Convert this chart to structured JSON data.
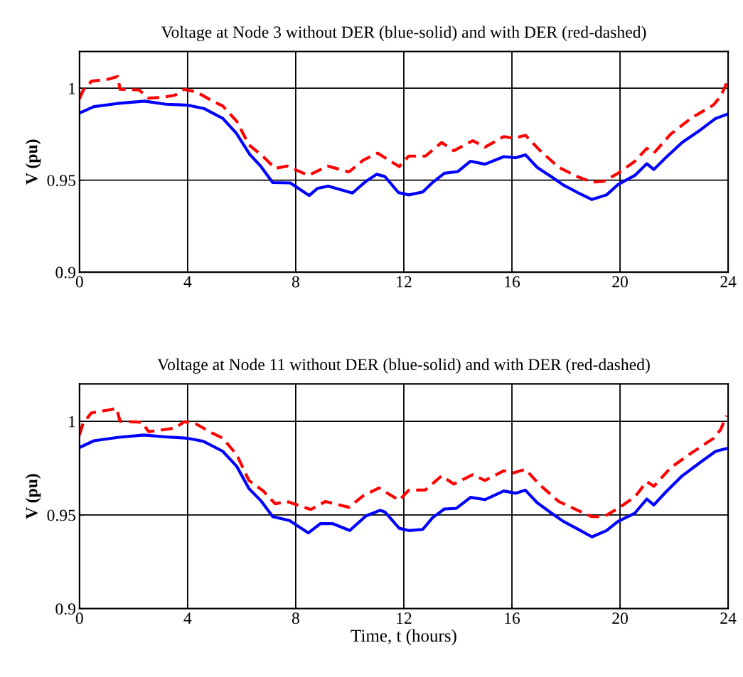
{
  "chart_data": [
    {
      "type": "line",
      "title": "Voltage at Node 3 without DER (blue-solid) and with DER (red-dashed)",
      "ylabel": "V (pu)",
      "xlim": [
        0,
        24
      ],
      "xticks": [
        0,
        4,
        8,
        12,
        16,
        20,
        24
      ],
      "ylim": [
        0.9,
        1.02
      ],
      "yticks": [
        0.9,
        0.95,
        1
      ],
      "grid": true,
      "series": [
        {
          "color": "#0000ff",
          "line_style": "solid",
          "x": [
            0,
            0.53,
            1.4,
            2.4,
            3.2,
            4.0,
            4.6,
            5.3,
            5.8,
            6.3,
            6.7,
            7.15,
            7.8,
            8.5,
            8.8,
            9.2,
            10.1,
            10.6,
            11.0,
            11.3,
            11.8,
            12.18,
            12.7,
            13.06,
            13.5,
            14.0,
            14.47,
            15.0,
            15.7,
            16.14,
            16.5,
            16.93,
            17.46,
            17.9,
            18.43,
            18.96,
            19.5,
            19.93,
            20.55,
            20.99,
            21.25,
            21.69,
            22.3,
            23.0,
            23.54,
            23.98
          ],
          "values": [
            0.9865,
            0.99,
            0.9917,
            0.993,
            0.9913,
            0.9908,
            0.989,
            0.9836,
            0.9756,
            0.964,
            0.9577,
            0.9487,
            0.9485,
            0.9417,
            0.9455,
            0.9468,
            0.943,
            0.9494,
            0.9532,
            0.952,
            0.9433,
            0.942,
            0.9436,
            0.9487,
            0.9538,
            0.9547,
            0.9603,
            0.9587,
            0.9628,
            0.9622,
            0.9638,
            0.957,
            0.9519,
            0.9474,
            0.9433,
            0.9395,
            0.942,
            0.9477,
            0.9526,
            0.959,
            0.9558,
            0.9622,
            0.9705,
            0.9776,
            0.9836,
            0.9859
          ]
        },
        {
          "color": "#ff0000",
          "line_style": "dashed",
          "x": [
            0,
            0.13,
            0.44,
            1.06,
            1.41,
            1.5,
            2.2,
            2.56,
            3.09,
            3.53,
            3.88,
            4.32,
            4.94,
            5.3,
            5.82,
            6.27,
            6.8,
            7.24,
            7.68,
            8.47,
            9.18,
            9.97,
            10.5,
            11.03,
            11.83,
            12.18,
            12.8,
            13.4,
            13.85,
            14.55,
            15.0,
            15.7,
            16.05,
            16.5,
            17.0,
            17.73,
            18.43,
            18.96,
            19.4,
            19.93,
            20.55,
            20.99,
            21.25,
            21.87,
            22.66,
            23.45,
            23.72,
            23.94
          ],
          "values": [
            0.9942,
            0.9987,
            1.0038,
            1.0049,
            1.0064,
            0.9994,
            0.9991,
            0.9946,
            0.9951,
            0.9962,
            0.9994,
            0.998,
            0.9929,
            0.9904,
            0.982,
            0.9692,
            0.9628,
            0.9564,
            0.9577,
            0.9526,
            0.9577,
            0.9545,
            0.9609,
            0.9647,
            0.9574,
            0.9631,
            0.9631,
            0.9705,
            0.966,
            0.9715,
            0.968,
            0.9737,
            0.9728,
            0.9744,
            0.9667,
            0.957,
            0.9519,
            0.949,
            0.9494,
            0.9538,
            0.9603,
            0.9673,
            0.9647,
            0.975,
            0.984,
            0.9908,
            0.9955,
            1.0026
          ]
        }
      ]
    },
    {
      "type": "line",
      "title": "Voltage at Node 11 without DER (blue-solid) and with DER (red-dashed)",
      "xlabel": "Time, t (hours)",
      "ylabel": "V (pu)",
      "xlim": [
        0,
        24
      ],
      "xticks": [
        0,
        4,
        8,
        12,
        16,
        20,
        24
      ],
      "ylim": [
        0.9,
        1.02
      ],
      "yticks": [
        0.9,
        0.95,
        1
      ],
      "grid": true,
      "series": [
        {
          "color": "#0000ff",
          "line_style": "solid",
          "x": [
            0,
            0.53,
            1.41,
            2.38,
            3.18,
            3.97,
            4.59,
            5.3,
            5.82,
            6.27,
            6.7,
            7.15,
            7.77,
            8.47,
            8.91,
            9.36,
            10.0,
            10.6,
            11.12,
            11.3,
            11.83,
            12.18,
            12.7,
            13.06,
            13.5,
            13.94,
            14.47,
            15.0,
            15.7,
            16.14,
            16.5,
            16.93,
            17.46,
            17.9,
            18.43,
            18.96,
            19.5,
            19.93,
            20.55,
            20.99,
            21.25,
            21.69,
            22.3,
            23.0,
            23.54,
            23.98
          ],
          "values": [
            0.986,
            0.9896,
            0.9914,
            0.9927,
            0.9917,
            0.991,
            0.9893,
            0.984,
            0.9759,
            0.9641,
            0.9578,
            0.9491,
            0.947,
            0.9404,
            0.9454,
            0.9454,
            0.9417,
            0.9495,
            0.9525,
            0.9516,
            0.9429,
            0.9417,
            0.9423,
            0.9485,
            0.9532,
            0.9535,
            0.9594,
            0.9582,
            0.9628,
            0.9616,
            0.9632,
            0.9566,
            0.951,
            0.9466,
            0.9425,
            0.9383,
            0.9417,
            0.9466,
            0.951,
            0.9585,
            0.9553,
            0.9622,
            0.9709,
            0.9784,
            0.984,
            0.9856
          ]
        },
        {
          "color": "#ff0000",
          "line_style": "dashed",
          "x": [
            0,
            0.13,
            0.44,
            1.06,
            1.37,
            1.5,
            2.3,
            2.56,
            3.09,
            3.53,
            3.88,
            4.32,
            4.94,
            5.3,
            5.82,
            6.27,
            6.8,
            7.24,
            7.68,
            8.56,
            9.1,
            9.97,
            10.5,
            11.08,
            11.83,
            12.18,
            12.8,
            13.4,
            13.85,
            14.55,
            15.0,
            15.7,
            16.05,
            16.5,
            17.0,
            17.73,
            18.43,
            18.96,
            19.4,
            19.93,
            20.55,
            20.99,
            21.25,
            21.87,
            22.66,
            23.45,
            23.72,
            23.94
          ],
          "values": [
            0.9927,
            0.9989,
            1.0045,
            1.006,
            1.007,
            1.0001,
            0.9995,
            0.9945,
            0.9955,
            0.9964,
            0.9998,
            0.9985,
            0.9935,
            0.991,
            0.9821,
            0.9684,
            0.9628,
            0.956,
            0.9572,
            0.9529,
            0.9572,
            0.9541,
            0.9603,
            0.9644,
            0.9578,
            0.9632,
            0.9634,
            0.9709,
            0.9665,
            0.9715,
            0.9684,
            0.9736,
            0.9724,
            0.9744,
            0.9665,
            0.9572,
            0.9525,
            0.9491,
            0.9491,
            0.9535,
            0.9597,
            0.9678,
            0.9653,
            0.9752,
            0.9833,
            0.9908,
            0.9955,
            1.003
          ]
        }
      ]
    }
  ]
}
